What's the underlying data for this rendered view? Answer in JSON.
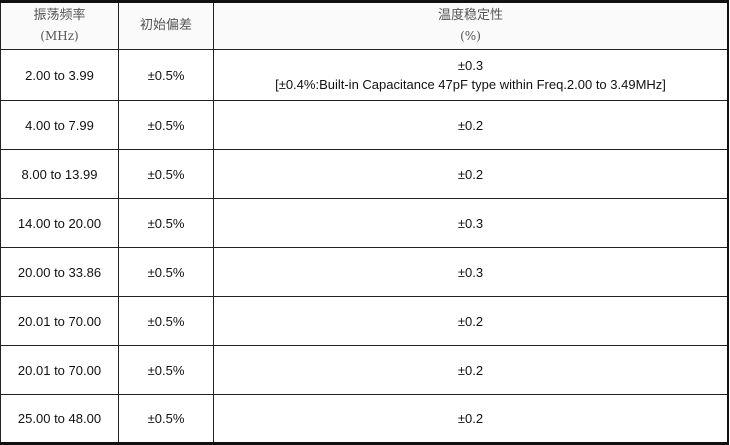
{
  "headers": [
    {
      "label": "振荡频率",
      "unit": "(MHz)"
    },
    {
      "label": "初始偏差",
      "unit": ""
    },
    {
      "label": "温度稳定性",
      "unit": "(%)"
    }
  ],
  "rows": [
    {
      "freq": "2.00 to 3.99",
      "tolerance": "±0.5%",
      "stability": "±0.3",
      "note": "[±0.4%:Built-in Capacitance 47pF type within Freq.2.00 to 3.49MHz]"
    },
    {
      "freq": "4.00 to 7.99",
      "tolerance": "±0.5%",
      "stability": "±0.2"
    },
    {
      "freq": "8.00 to 13.99",
      "tolerance": "±0.5%",
      "stability": "±0.2"
    },
    {
      "freq": "14.00 to 20.00",
      "tolerance": "±0.5%",
      "stability": "±0.3"
    },
    {
      "freq": "20.00 to 33.86",
      "tolerance": "±0.5%",
      "stability": "±0.3"
    },
    {
      "freq": "20.01 to 70.00",
      "tolerance": "±0.5%",
      "stability": "±0.2"
    },
    {
      "freq": "20.01 to 70.00",
      "tolerance": "±0.5%",
      "stability": "±0.2"
    },
    {
      "freq": "25.00 to 48.00",
      "tolerance": "±0.5%",
      "stability": "±0.2"
    }
  ]
}
